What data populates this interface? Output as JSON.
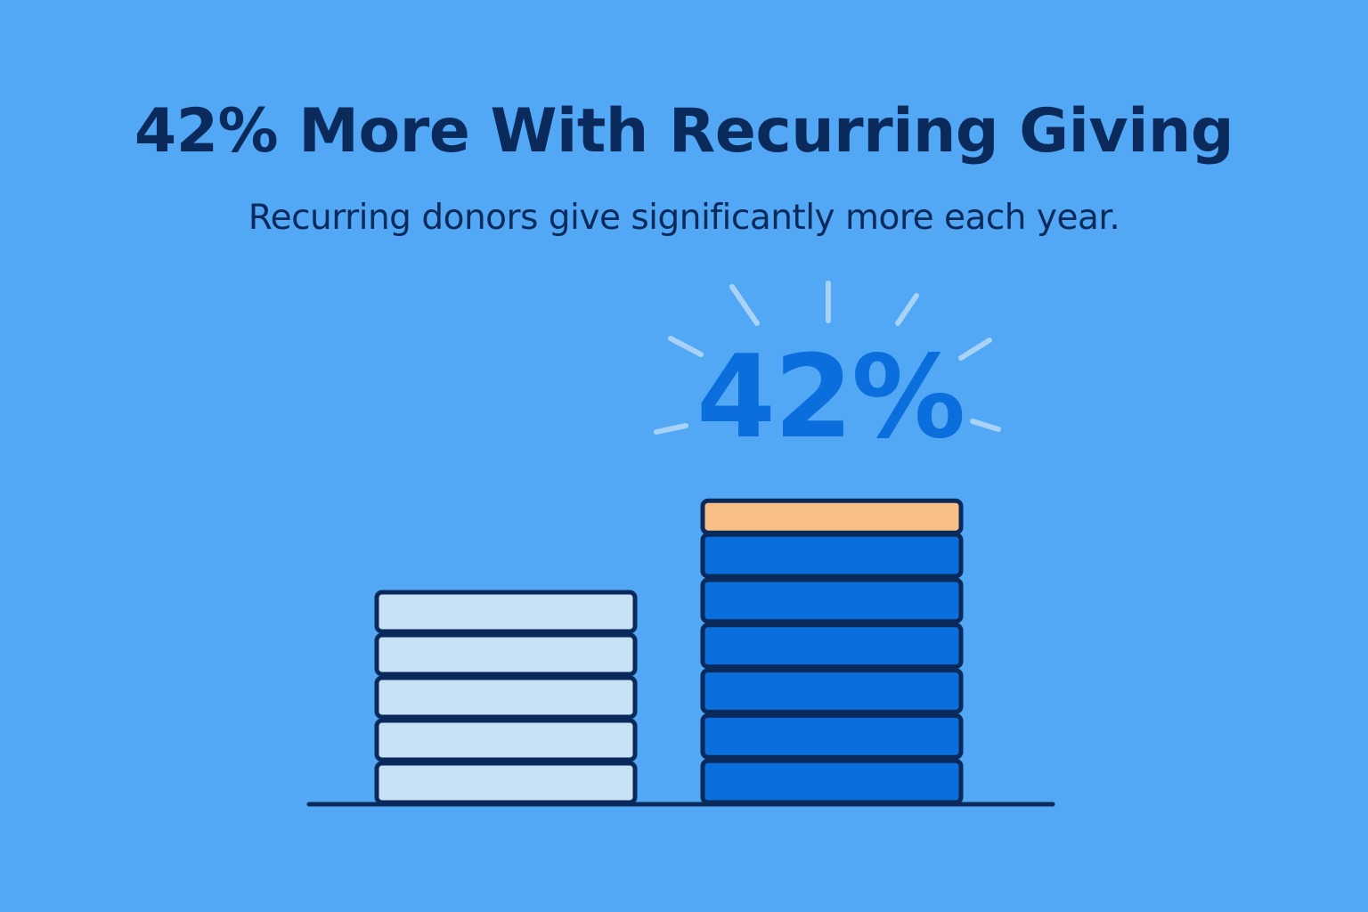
{
  "title": "42% More With Recurring Giving",
  "subtitle": "Recurring donors give significantly more each year.",
  "colors": {
    "background": "#52a8f5",
    "text_dark": "#0b2a5c",
    "one_time_fill": "#c8e0f4",
    "recurring_fill": "#0a6fdc",
    "increase_fill": "#f7bf86",
    "highlight": "#0a6fdc",
    "burst": "#a9d2f7"
  },
  "chart_data": {
    "type": "bar",
    "values": [
      100,
      142
    ],
    "increase_label": "42%",
    "increase_percent": 42
  }
}
